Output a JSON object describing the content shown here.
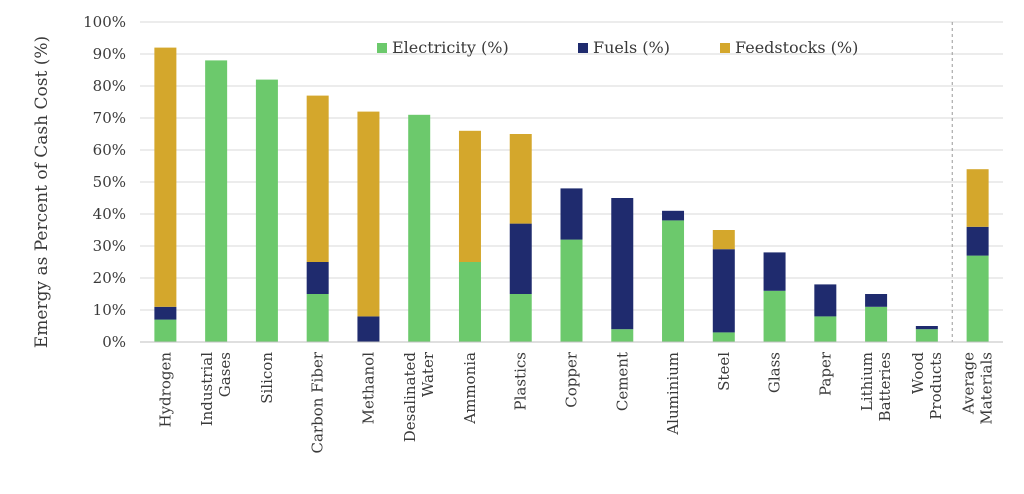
{
  "chart_data": {
    "type": "bar",
    "stacked": true,
    "title": "",
    "ylabel": "Emergy as Percent of Cash Cost (%)",
    "xlabel": "",
    "ylim": [
      0,
      100
    ],
    "yticks": [
      "0%",
      "10%",
      "20%",
      "30%",
      "40%",
      "50%",
      "60%",
      "70%",
      "80%",
      "90%",
      "100%"
    ],
    "grid": true,
    "legend_position": "top",
    "categories": [
      [
        "Hydrogen"
      ],
      [
        "Industrial",
        "Gases"
      ],
      [
        "Silicon"
      ],
      [
        "Carbon Fiber"
      ],
      [
        "Methanol"
      ],
      [
        "Desalinated",
        "Water"
      ],
      [
        "Ammonia"
      ],
      [
        "Plastics"
      ],
      [
        "Copper"
      ],
      [
        "Cement"
      ],
      [
        "Aluminium"
      ],
      [
        "Steel"
      ],
      [
        "Glass"
      ],
      [
        "Paper"
      ],
      [
        "Lithium",
        "Batteries"
      ],
      [
        "Wood",
        "Products"
      ],
      [
        "Average",
        "Materials"
      ]
    ],
    "series": [
      {
        "name": "Electricity (%)",
        "color": "#6cc96c",
        "values": [
          7,
          88,
          82,
          15,
          0,
          71,
          25,
          15,
          32,
          4,
          38,
          3,
          16,
          8,
          11,
          4,
          27
        ]
      },
      {
        "name": "Fuels (%)",
        "color": "#1f2b6e",
        "values": [
          4,
          0,
          0,
          10,
          8,
          0,
          0,
          22,
          16,
          41,
          3,
          26,
          12,
          10,
          4,
          1,
          9
        ]
      },
      {
        "name": "Feedstocks (%)",
        "color": "#d4a72c",
        "values": [
          81,
          0,
          0,
          52,
          64,
          0,
          41,
          28,
          0,
          0,
          0,
          6,
          0,
          0,
          0,
          0,
          18
        ]
      }
    ]
  }
}
